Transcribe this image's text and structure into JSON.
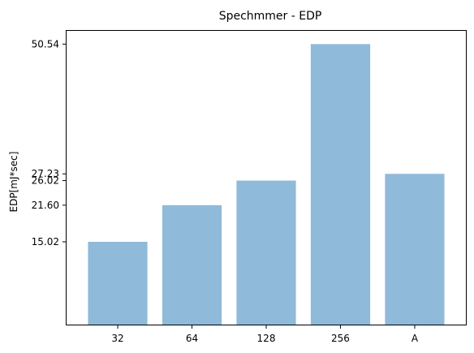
{
  "chart_data": {
    "type": "bar",
    "title": "Spechmmer - EDP",
    "xlabel": "",
    "ylabel": "EDP[mJ*sec]",
    "categories": [
      "32",
      "64",
      "128",
      "256",
      "A"
    ],
    "values": [
      15.02,
      21.6,
      26.02,
      50.54,
      27.23
    ],
    "y_tick_labels": [
      "15.02",
      "21.60",
      "26.02",
      "27.23",
      "50.54"
    ],
    "ylim": [
      0,
      53.07
    ],
    "grid": false,
    "bar_color": "#8fbad9",
    "axis_color": "#000000",
    "legend": "none"
  }
}
